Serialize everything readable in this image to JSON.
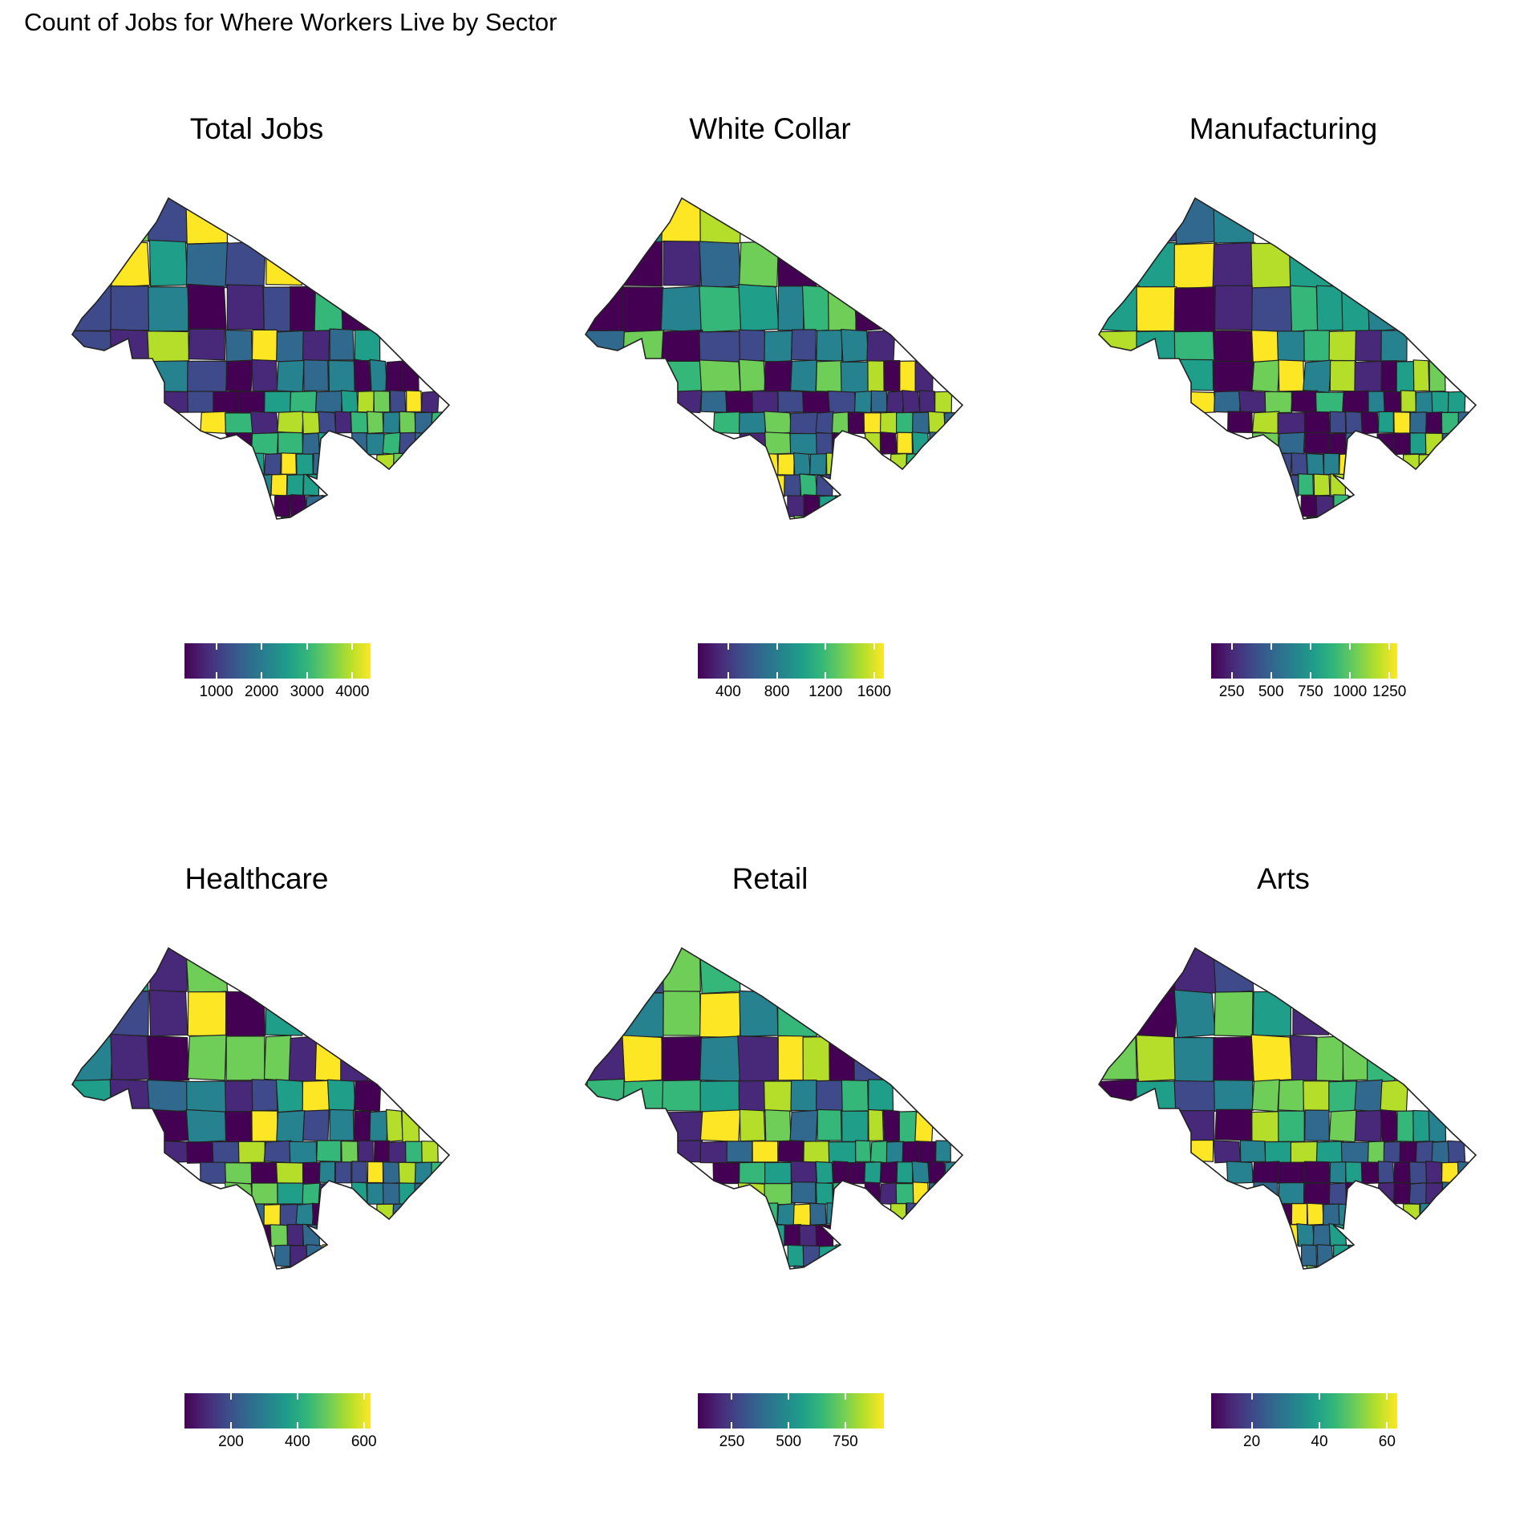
{
  "title": "Count of Jobs for Where Workers Live by Sector",
  "palette": [
    "#440154",
    "#482878",
    "#3e4a89",
    "#31688e",
    "#26828e",
    "#1f9e89",
    "#35b779",
    "#6ece58",
    "#b5de2b",
    "#fde725"
  ],
  "border_color": "#222222",
  "panels": [
    {
      "title": "Total Jobs",
      "legend": {
        "min": 300,
        "max": 4400,
        "ticks": [
          1000,
          2000,
          3000,
          4000
        ],
        "labels": [
          "1000",
          "2000",
          "3000",
          "4000"
        ]
      },
      "seed": 11
    },
    {
      "title": "White Collar",
      "legend": {
        "min": 150,
        "max": 1680,
        "ticks": [
          400,
          800,
          1200,
          1600
        ],
        "labels": [
          "400",
          "800",
          "1200",
          "1600"
        ]
      },
      "seed": 23
    },
    {
      "title": "Manufacturing",
      "legend": {
        "min": 120,
        "max": 1300,
        "ticks": [
          250,
          500,
          750,
          1000,
          1250
        ],
        "labels": [
          "250",
          "500",
          "750",
          "1000",
          "1250"
        ]
      },
      "seed": 37
    },
    {
      "title": "Healthcare",
      "legend": {
        "min": 60,
        "max": 620,
        "ticks": [
          200,
          400,
          600
        ],
        "labels": [
          "200",
          "400",
          "600"
        ]
      },
      "seed": 41
    },
    {
      "title": "Retail",
      "legend": {
        "min": 100,
        "max": 920,
        "ticks": [
          250,
          500,
          750
        ],
        "labels": [
          "250",
          "500",
          "750"
        ]
      },
      "seed": 53
    },
    {
      "title": "Arts",
      "legend": {
        "min": 8,
        "max": 63,
        "ticks": [
          20,
          40,
          60
        ],
        "labels": [
          "20",
          "40",
          "60"
        ]
      },
      "seed": 67
    }
  ]
}
